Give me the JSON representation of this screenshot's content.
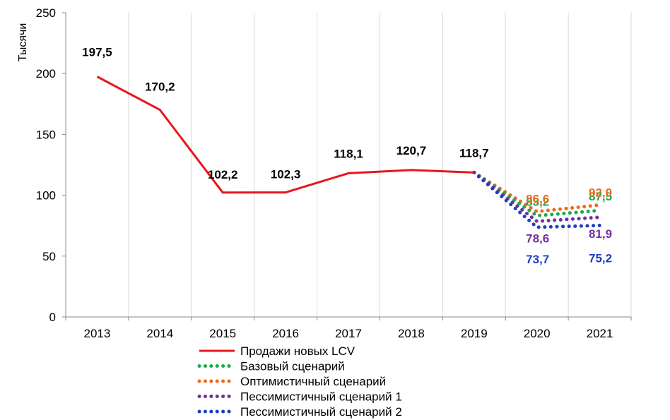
{
  "chart_data": {
    "type": "line",
    "ylabel": "Тысячи",
    "ylim": [
      0,
      250
    ],
    "yticks": [
      0,
      50,
      100,
      150,
      200,
      250
    ],
    "categories": [
      "2013",
      "2014",
      "2015",
      "2016",
      "2017",
      "2018",
      "2019",
      "2020",
      "2021"
    ],
    "grid": "vertical",
    "legend_position": "bottom",
    "series": [
      {
        "name": "Продажи новых LCV",
        "style": "solid",
        "color": "#e8161d",
        "x": [
          "2013",
          "2014",
          "2015",
          "2016",
          "2017",
          "2018",
          "2019"
        ],
        "values": [
          197.5,
          170.2,
          102.2,
          102.3,
          118.1,
          120.7,
          118.7
        ],
        "labels": [
          "197,5",
          "170,2",
          "102,2",
          "102,3",
          "118,1",
          "120,7",
          "118,7"
        ],
        "label_color": "#000000"
      },
      {
        "name": "Базовый сценарий",
        "style": "dotted",
        "color": "#1aab4f",
        "x": [
          "2019",
          "2020",
          "2021"
        ],
        "values": [
          118.7,
          83.2,
          87.5
        ],
        "labels": [
          "",
          "83,2",
          "87,5"
        ],
        "label_color": "#1aab4f"
      },
      {
        "name": "Оптимистичный сценарий",
        "style": "dotted",
        "color": "#ed6a1c",
        "x": [
          "2019",
          "2020",
          "2021"
        ],
        "values": [
          118.7,
          86.6,
          92.0
        ],
        "labels": [
          "",
          "86,6",
          "92,0"
        ],
        "label_color": "#ed6a1c"
      },
      {
        "name": "Пессимистичный сценарий 1",
        "style": "dotted",
        "color": "#7030a0",
        "x": [
          "2019",
          "2020",
          "2021"
        ],
        "values": [
          118.7,
          78.6,
          81.9
        ],
        "labels": [
          "",
          "78,6",
          "81,9"
        ],
        "label_color": "#7030a0"
      },
      {
        "name": "Пессимистичный сценарий 2",
        "style": "dotted",
        "color": "#1f3fbf",
        "x": [
          "2019",
          "2020",
          "2021"
        ],
        "values": [
          118.7,
          73.7,
          75.2
        ],
        "labels": [
          "",
          "73,7",
          "75,2"
        ],
        "label_color": "#1f3fbf"
      }
    ]
  }
}
